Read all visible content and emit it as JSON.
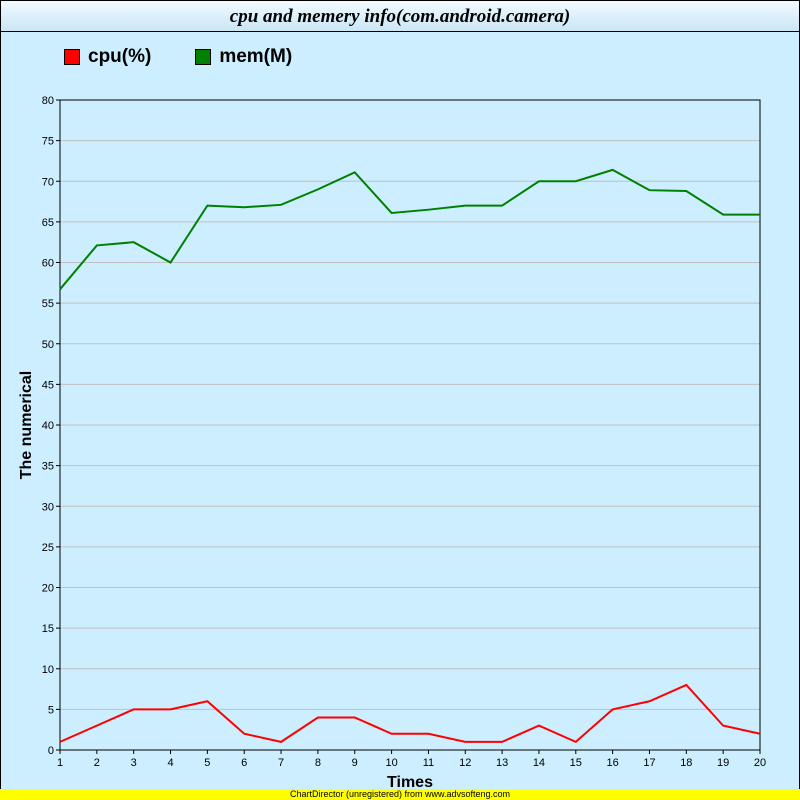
{
  "chart_data": {
    "type": "line",
    "title": "cpu and memery info(com.android.camera)",
    "xlabel": "Times",
    "ylabel": "The numerical",
    "x": [
      1,
      2,
      3,
      4,
      5,
      6,
      7,
      8,
      9,
      10,
      11,
      12,
      13,
      14,
      15,
      16,
      17,
      18,
      19,
      20
    ],
    "ylim": [
      0,
      80
    ],
    "yticks": [
      0,
      5,
      10,
      15,
      20,
      25,
      30,
      35,
      40,
      45,
      50,
      55,
      60,
      65,
      70,
      75,
      80
    ],
    "grid": true,
    "legend_position": "top-left",
    "series": [
      {
        "name": "cpu(%)",
        "color": "#ff0000",
        "values": [
          1,
          3,
          5,
          5,
          6,
          2,
          1,
          4,
          4,
          2,
          2,
          1,
          1,
          3,
          1,
          5,
          6,
          8,
          3,
          2
        ]
      },
      {
        "name": "mem(M)",
        "color": "#008000",
        "values": [
          56.7,
          62.1,
          62.5,
          60,
          67,
          66.8,
          67.1,
          69,
          71.1,
          66.1,
          66.5,
          67,
          67,
          70,
          70,
          71.4,
          68.9,
          68.8,
          65.9,
          65.9
        ]
      }
    ]
  },
  "footer": "ChartDirector (unregistered) from www.advsofteng.com"
}
